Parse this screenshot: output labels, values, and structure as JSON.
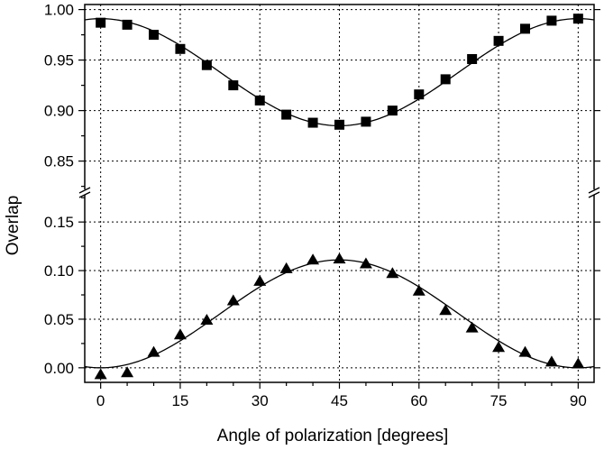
{
  "chart_data": {
    "type": "scatter",
    "xlabel": "Angle of polarization [degrees]",
    "ylabel": "Overlap",
    "xlim": [
      -3,
      93
    ],
    "xticks": [
      0,
      15,
      30,
      45,
      60,
      75,
      90
    ],
    "broken_y_axis": true,
    "grid": true,
    "panels": [
      {
        "name": "upper",
        "ylim": [
          0.822,
          1.005
        ],
        "yticks": [
          0.85,
          0.9,
          0.95,
          1.0
        ],
        "ytick_labels": [
          "0.85",
          "0.90",
          "0.95",
          "1.00"
        ],
        "marker": "square",
        "x": [
          0,
          5,
          10,
          15,
          20,
          25,
          30,
          35,
          40,
          45,
          50,
          55,
          60,
          65,
          70,
          75,
          80,
          85,
          90
        ],
        "y": [
          0.987,
          0.985,
          0.975,
          0.961,
          0.945,
          0.925,
          0.91,
          0.896,
          0.888,
          0.886,
          0.889,
          0.9,
          0.916,
          0.931,
          0.951,
          0.969,
          0.981,
          0.989,
          0.991
        ],
        "fit": {
          "form": "a - b*sin^2(2x)",
          "a": 0.991,
          "b": 0.106
        }
      },
      {
        "name": "lower",
        "ylim": [
          -0.015,
          0.178
        ],
        "yticks": [
          0.0,
          0.05,
          0.1,
          0.15
        ],
        "ytick_labels": [
          "0.00",
          "0.05",
          "0.10",
          "0.15"
        ],
        "marker": "triangle",
        "x": [
          0,
          5,
          10,
          15,
          20,
          25,
          30,
          35,
          40,
          45,
          50,
          55,
          60,
          65,
          70,
          75,
          80,
          85,
          90
        ],
        "y": [
          -0.007,
          -0.005,
          0.016,
          0.034,
          0.049,
          0.069,
          0.089,
          0.102,
          0.111,
          0.112,
          0.107,
          0.097,
          0.079,
          0.059,
          0.041,
          0.021,
          0.016,
          0.006,
          0.004
        ],
        "fit": {
          "form": "a*sin^2(2x)",
          "a": 0.111
        }
      }
    ]
  }
}
